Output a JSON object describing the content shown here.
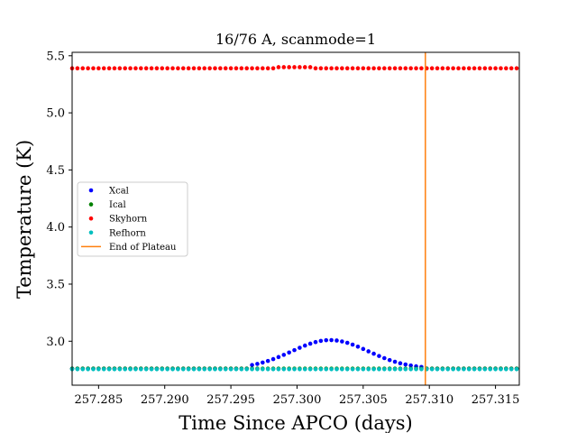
{
  "chart_data": {
    "type": "scatter",
    "title": "16/76 A, scanmode=1",
    "xlabel": "Time Since APCO (days)",
    "ylabel": "Temperature (K)",
    "xlim": [
      257.283,
      257.3168
    ],
    "ylim": [
      2.615,
      5.53
    ],
    "xticks": [
      "257.285",
      "257.290",
      "257.295",
      "257.300",
      "257.305",
      "257.310",
      "257.315"
    ],
    "yticks": [
      "3.0",
      "3.5",
      "4.0",
      "4.5",
      "5.0",
      "5.5"
    ],
    "grid": false,
    "legend_position": "center-left",
    "x_start": 257.283,
    "x_step": 0.0004,
    "n_points": 85,
    "series": [
      {
        "name": "Xcal",
        "kind": "points",
        "color": "#0000ff",
        "baseline": 2.76,
        "bump_peak": 3.01,
        "bump_center": 257.3025,
        "bump_width": 0.0029,
        "bump_start": 257.2963,
        "bump_end": 257.3095
      },
      {
        "name": "Ical",
        "kind": "points",
        "color": "#008000",
        "value": 2.76
      },
      {
        "name": "Skyhorn",
        "kind": "points",
        "color": "#ff0000",
        "value": 5.39,
        "bump_peak": 5.4,
        "bump_start": 257.2985,
        "bump_end": 257.3012
      },
      {
        "name": "Refhorn",
        "kind": "points",
        "color": "#00bfbf",
        "value": 2.755
      },
      {
        "name": "End of Plateau",
        "kind": "vline",
        "color": "#ff7f0e",
        "x": 257.3097
      }
    ]
  }
}
